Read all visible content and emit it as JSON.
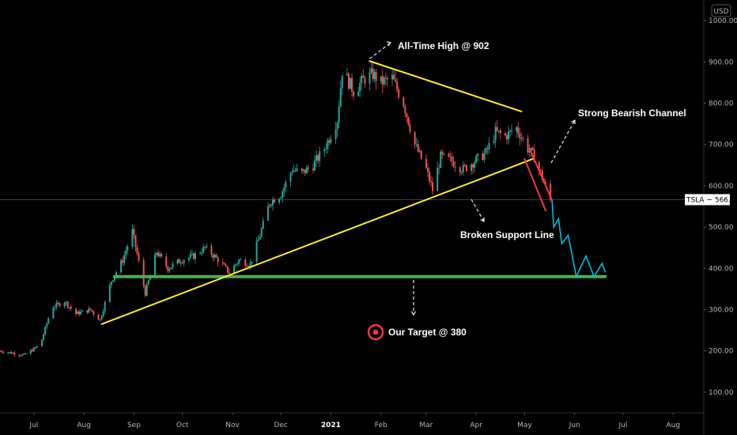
{
  "chart_data": {
    "type": "candlestick",
    "symbol": "TSLA",
    "currency": "USD",
    "last_price_label": "566.44",
    "last_price": 566.44,
    "ylim": [
      50,
      1050
    ],
    "y_ticks": [
      "1000.00",
      "900.00",
      "800.00",
      "700.00",
      "600.00",
      "500.00",
      "400.00",
      "300.00",
      "200.00",
      "100.00"
    ],
    "y_tick_values": [
      1000,
      900,
      800,
      700,
      600,
      500,
      400,
      300,
      200,
      100
    ],
    "x_ticks": [
      "Jul",
      "Aug",
      "Sep",
      "Oct",
      "Nov",
      "Dec",
      "2021",
      "Feb",
      "Mar",
      "Apr",
      "May",
      "Jun",
      "Jul",
      "Aug"
    ],
    "x_tick_dates": [
      "2020-07-01",
      "2020-08-01",
      "2020-09-01",
      "2020-10-01",
      "2020-11-01",
      "2020-12-01",
      "2021-01-01",
      "2021-02-01",
      "2021-03-01",
      "2021-04-01",
      "2021-05-01",
      "2021-06-01",
      "2021-07-01",
      "2021-08-01"
    ],
    "xlim": [
      "2020-06-10",
      "2021-08-20"
    ],
    "price_path": [
      [
        "2020-06-10",
        200
      ],
      [
        "2020-06-25",
        190
      ],
      [
        "2020-07-05",
        215
      ],
      [
        "2020-07-12",
        305
      ],
      [
        "2020-07-20",
        320
      ],
      [
        "2020-07-27",
        290
      ],
      [
        "2020-08-05",
        300
      ],
      [
        "2020-08-11",
        275
      ],
      [
        "2020-08-18",
        370
      ],
      [
        "2020-08-25",
        420
      ],
      [
        "2020-08-31",
        490
      ],
      [
        "2020-09-08",
        340
      ],
      [
        "2020-09-15",
        440
      ],
      [
        "2020-09-22",
        400
      ],
      [
        "2020-09-30",
        420
      ],
      [
        "2020-10-08",
        430
      ],
      [
        "2020-10-15",
        450
      ],
      [
        "2020-10-22",
        425
      ],
      [
        "2020-10-30",
        390
      ],
      [
        "2020-11-05",
        420
      ],
      [
        "2020-11-12",
        410
      ],
      [
        "2020-11-18",
        480
      ],
      [
        "2020-11-24",
        560
      ],
      [
        "2020-12-01",
        580
      ],
      [
        "2020-12-08",
        640
      ],
      [
        "2020-12-14",
        630
      ],
      [
        "2020-12-21",
        650
      ],
      [
        "2020-12-28",
        690
      ],
      [
        "2021-01-05",
        760
      ],
      [
        "2021-01-08",
        880
      ],
      [
        "2021-01-15",
        830
      ],
      [
        "2021-01-22",
        860
      ],
      [
        "2021-01-27",
        870
      ],
      [
        "2021-02-01",
        850
      ],
      [
        "2021-02-08",
        860
      ],
      [
        "2021-02-15",
        800
      ],
      [
        "2021-02-22",
        700
      ],
      [
        "2021-03-01",
        640
      ],
      [
        "2021-03-05",
        590
      ],
      [
        "2021-03-10",
        670
      ],
      [
        "2021-03-17",
        660
      ],
      [
        "2021-03-24",
        640
      ],
      [
        "2021-03-31",
        660
      ],
      [
        "2021-04-07",
        680
      ],
      [
        "2021-04-13",
        730
      ],
      [
        "2021-04-19",
        720
      ],
      [
        "2021-04-26",
        740
      ],
      [
        "2021-05-03",
        690
      ],
      [
        "2021-05-07",
        670
      ],
      [
        "2021-05-12",
        620
      ],
      [
        "2021-05-17",
        566
      ]
    ],
    "projection_path": [
      [
        "2021-05-18",
        566
      ],
      [
        "2021-05-19",
        500
      ],
      [
        "2021-05-22",
        520
      ],
      [
        "2021-05-24",
        460
      ],
      [
        "2021-05-28",
        480
      ],
      [
        "2021-06-02",
        380
      ],
      [
        "2021-06-08",
        430
      ],
      [
        "2021-06-13",
        380
      ],
      [
        "2021-06-18",
        412
      ],
      [
        "2021-06-20",
        390
      ]
    ],
    "lines": {
      "support_level": {
        "from": [
          "2020-08-20",
          380
        ],
        "to": [
          "2021-06-20",
          380
        ]
      },
      "broken_support": {
        "from": [
          "2020-08-12",
          265
        ],
        "to": [
          "2021-05-06",
          665
        ]
      },
      "resistance": {
        "from": [
          "2021-01-25",
          902
        ],
        "to": [
          "2021-04-29",
          780
        ]
      },
      "channel_upper": {
        "from": [
          "2021-05-04",
          690
        ],
        "to": [
          "2021-05-18",
          565
        ]
      },
      "channel_lower": {
        "from": [
          "2021-05-01",
          665
        ],
        "to": [
          "2021-05-14",
          540
        ]
      }
    },
    "annotations": [
      {
        "text": "All-Time High @ 902",
        "role": "ath"
      },
      {
        "text": "Strong Bearish Channel",
        "role": "channel"
      },
      {
        "text": "Broken Support Line",
        "role": "support"
      },
      {
        "text": "Our Target @ 380",
        "role": "target"
      }
    ],
    "colors": {
      "up": "#26a69a",
      "down": "#ef5350",
      "support": "#4caf50",
      "trend": "#ffeb3b",
      "channel": "#f23645",
      "projection": "#00bcd4"
    }
  }
}
